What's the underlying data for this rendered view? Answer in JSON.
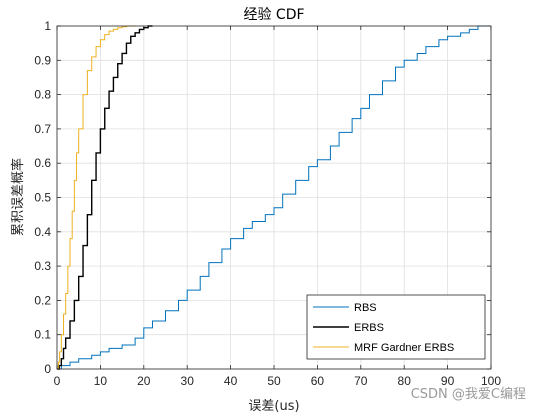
{
  "chart_data": {
    "type": "line",
    "title": "经验 CDF",
    "xlabel": "误差(us)",
    "ylabel": "累积误差概率",
    "xlim": [
      0,
      100
    ],
    "ylim": [
      0,
      1
    ],
    "xticks": [
      0,
      10,
      20,
      30,
      40,
      50,
      60,
      70,
      80,
      90,
      100
    ],
    "yticks": [
      0,
      0.1,
      0.2,
      0.3,
      0.4,
      0.5,
      0.6,
      0.7,
      0.8,
      0.9,
      1
    ],
    "grid": true,
    "legend_position": "bottom-right",
    "series": [
      {
        "name": "RBS",
        "color": "#0072BD",
        "x": [
          0,
          1,
          3,
          5,
          8,
          10,
          12,
          15,
          18,
          20,
          22,
          25,
          28,
          30,
          33,
          35,
          38,
          40,
          43,
          45,
          48,
          50,
          52,
          55,
          58,
          60,
          63,
          65,
          68,
          70,
          72,
          75,
          78,
          80,
          83,
          85,
          88,
          90,
          93,
          95,
          97,
          99
        ],
        "y": [
          0,
          0.01,
          0.02,
          0.03,
          0.04,
          0.05,
          0.06,
          0.07,
          0.09,
          0.12,
          0.14,
          0.17,
          0.2,
          0.23,
          0.27,
          0.31,
          0.35,
          0.38,
          0.41,
          0.43,
          0.45,
          0.47,
          0.51,
          0.55,
          0.59,
          0.61,
          0.65,
          0.69,
          0.73,
          0.76,
          0.8,
          0.84,
          0.88,
          0.9,
          0.92,
          0.94,
          0.96,
          0.97,
          0.98,
          0.99,
          1,
          1
        ]
      },
      {
        "name": "ERBS",
        "color": "#000000",
        "x": [
          0,
          0.5,
          1,
          1.5,
          2,
          3,
          4,
          5,
          6,
          7,
          8,
          9,
          10,
          11,
          12,
          13,
          14,
          15,
          16,
          17,
          18,
          19,
          20,
          21,
          22
        ],
        "y": [
          0,
          0.01,
          0.03,
          0.06,
          0.09,
          0.14,
          0.2,
          0.27,
          0.36,
          0.45,
          0.55,
          0.63,
          0.7,
          0.76,
          0.81,
          0.85,
          0.89,
          0.92,
          0.95,
          0.97,
          0.98,
          0.99,
          0.995,
          1,
          1
        ]
      },
      {
        "name": "MRF Gardner ERBS",
        "color": "#EDB120",
        "x": [
          0,
          0.3,
          0.6,
          1,
          1.5,
          2,
          2.5,
          3,
          3.5,
          4,
          4.5,
          5,
          6,
          7,
          8,
          9,
          10,
          11,
          12,
          13,
          14,
          15,
          16,
          17,
          18
        ],
        "y": [
          0,
          0.02,
          0.05,
          0.1,
          0.16,
          0.22,
          0.3,
          0.38,
          0.46,
          0.55,
          0.63,
          0.7,
          0.8,
          0.87,
          0.91,
          0.94,
          0.96,
          0.975,
          0.985,
          0.99,
          0.995,
          0.998,
          1,
          1,
          1
        ]
      }
    ]
  },
  "watermark": "CSDN @我爱C编程"
}
